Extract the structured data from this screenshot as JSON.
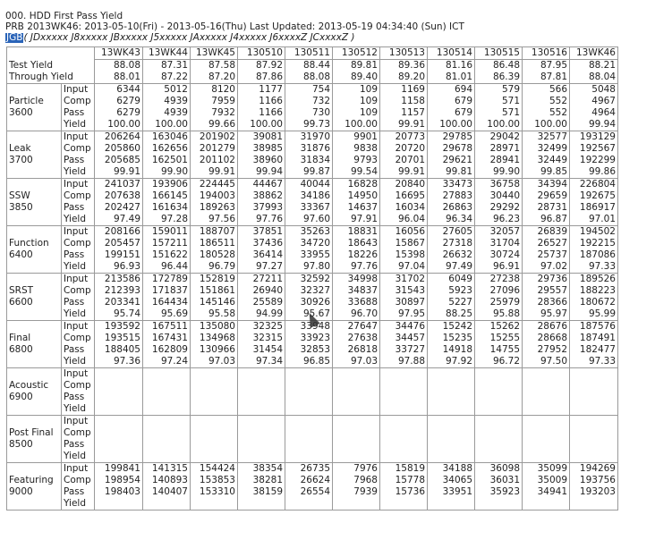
{
  "header": {
    "title": "000. HDD First Pass Yield",
    "line2_prefix": "PRB",
    "line2_range": "2013WK46: 2013-05-10(Fri) - 2013-05-16(Thu)",
    "line2_updated": "Last Updated: 2013-05-19 04:34:40 (Sun) ICT",
    "tag": "JGB",
    "codes": "( JDxxxxx J8xxxxx JBxxxxx J5xxxxx JAxxxxx J4xxxxx J6xxxxZ JCxxxxZ )"
  },
  "columns": [
    "13WK43",
    "13WK44",
    "13WK45",
    "130510",
    "130511",
    "130512",
    "130513",
    "130514",
    "130515",
    "130516",
    "13WK46"
  ],
  "labels": [
    "Input",
    "Comp",
    "Pass",
    "Yield"
  ],
  "tty": {
    "label_line1": "Test Yield",
    "label_line2": "Through Yield",
    "test_yield": [
      "88.08",
      "87.31",
      "87.58",
      "87.92",
      "88.44",
      "89.81",
      "89.36",
      "81.16",
      "86.48",
      "87.95",
      "88.21"
    ],
    "through_yield": [
      "88.01",
      "87.22",
      "87.20",
      "87.86",
      "88.08",
      "89.40",
      "89.20",
      "81.01",
      "86.39",
      "87.81",
      "88.04"
    ]
  },
  "stages": [
    {
      "name": "Particle",
      "code": "3600",
      "input": [
        "6344",
        "5012",
        "8120",
        "1177",
        "754",
        "109",
        "1169",
        "694",
        "579",
        "566",
        "5048"
      ],
      "comp": [
        "6279",
        "4939",
        "7959",
        "1166",
        "732",
        "109",
        "1158",
        "679",
        "571",
        "552",
        "4967"
      ],
      "pass": [
        "6279",
        "4939",
        "7932",
        "1166",
        "730",
        "109",
        "1157",
        "679",
        "571",
        "552",
        "4964"
      ],
      "yield": [
        "100.00",
        "100.00",
        "99.66",
        "100.00",
        "99.73",
        "100.00",
        "99.91",
        "100.00",
        "100.00",
        "100.00",
        "99.94"
      ]
    },
    {
      "name": "Leak",
      "code": "3700",
      "input": [
        "206264",
        "163046",
        "201902",
        "39081",
        "31970",
        "9901",
        "20773",
        "29785",
        "29042",
        "32577",
        "193129"
      ],
      "comp": [
        "205860",
        "162656",
        "201279",
        "38985",
        "31876",
        "9838",
        "20720",
        "29678",
        "28971",
        "32499",
        "192567"
      ],
      "pass": [
        "205685",
        "162501",
        "201102",
        "38960",
        "31834",
        "9793",
        "20701",
        "29621",
        "28941",
        "32449",
        "192299"
      ],
      "yield": [
        "99.91",
        "99.90",
        "99.91",
        "99.94",
        "99.87",
        "99.54",
        "99.91",
        "99.81",
        "99.90",
        "99.85",
        "99.86"
      ]
    },
    {
      "name": "SSW",
      "code": "3850",
      "input": [
        "241037",
        "193906",
        "224445",
        "44467",
        "40044",
        "16828",
        "20840",
        "33473",
        "36758",
        "34394",
        "226804"
      ],
      "comp": [
        "207638",
        "166145",
        "194003",
        "38862",
        "34186",
        "14950",
        "16695",
        "27883",
        "30440",
        "29659",
        "192675"
      ],
      "pass": [
        "202427",
        "161634",
        "189263",
        "37993",
        "33367",
        "14637",
        "16034",
        "26863",
        "29292",
        "28731",
        "186917"
      ],
      "yield": [
        "97.49",
        "97.28",
        "97.56",
        "97.76",
        "97.60",
        "97.91",
        "96.04",
        "96.34",
        "96.23",
        "96.87",
        "97.01"
      ]
    },
    {
      "name": "Function",
      "code": "6400",
      "input": [
        "208166",
        "159011",
        "188707",
        "37851",
        "35263",
        "18831",
        "16056",
        "27605",
        "32057",
        "26839",
        "194502"
      ],
      "comp": [
        "205457",
        "157211",
        "186511",
        "37436",
        "34720",
        "18643",
        "15867",
        "27318",
        "31704",
        "26527",
        "192215"
      ],
      "pass": [
        "199151",
        "151622",
        "180528",
        "36414",
        "33955",
        "18226",
        "15398",
        "26632",
        "30724",
        "25737",
        "187086"
      ],
      "yield": [
        "96.93",
        "96.44",
        "96.79",
        "97.27",
        "97.80",
        "97.76",
        "97.04",
        "97.49",
        "96.91",
        "97.02",
        "97.33"
      ]
    },
    {
      "name": "SRST",
      "code": "6600",
      "input": [
        "213586",
        "172789",
        "152819",
        "27211",
        "32592",
        "34998",
        "31702",
        "6049",
        "27238",
        "29736",
        "189526"
      ],
      "comp": [
        "212393",
        "171837",
        "151861",
        "26940",
        "32327",
        "34837",
        "31543",
        "5923",
        "27096",
        "29557",
        "188223"
      ],
      "pass": [
        "203341",
        "164434",
        "145146",
        "25589",
        "30926",
        "33688",
        "30897",
        "5227",
        "25979",
        "28366",
        "180672"
      ],
      "yield": [
        "95.74",
        "95.69",
        "95.58",
        "94.99",
        "95.67",
        "96.70",
        "97.95",
        "88.25",
        "95.88",
        "95.97",
        "95.99"
      ]
    },
    {
      "name": "Final",
      "code": "6800",
      "input": [
        "193592",
        "167511",
        "135080",
        "32325",
        "33948",
        "27647",
        "34476",
        "15242",
        "15262",
        "28676",
        "187576"
      ],
      "comp": [
        "193515",
        "167431",
        "134968",
        "32315",
        "33923",
        "27638",
        "34457",
        "15235",
        "15255",
        "28668",
        "187491"
      ],
      "pass": [
        "188405",
        "162809",
        "130966",
        "31454",
        "32853",
        "26818",
        "33727",
        "14918",
        "14755",
        "27952",
        "182477"
      ],
      "yield": [
        "97.36",
        "97.24",
        "97.03",
        "97.34",
        "96.85",
        "97.03",
        "97.88",
        "97.92",
        "96.72",
        "97.50",
        "97.33"
      ]
    },
    {
      "name": "Acoustic",
      "code": "6900",
      "input": [
        "",
        "",
        "",
        "",
        "",
        "",
        "",
        "",
        "",
        "",
        ""
      ],
      "comp": [
        "",
        "",
        "",
        "",
        "",
        "",
        "",
        "",
        "",
        "",
        ""
      ],
      "pass": [
        "",
        "",
        "",
        "",
        "",
        "",
        "",
        "",
        "",
        "",
        ""
      ],
      "yield": [
        "",
        "",
        "",
        "",
        "",
        "",
        "",
        "",
        "",
        "",
        ""
      ]
    },
    {
      "name": "Post Final",
      "code": "8500",
      "input": [
        "",
        "",
        "",
        "",
        "",
        "",
        "",
        "",
        "",
        "",
        ""
      ],
      "comp": [
        "",
        "",
        "",
        "",
        "",
        "",
        "",
        "",
        "",
        "",
        ""
      ],
      "pass": [
        "",
        "",
        "",
        "",
        "",
        "",
        "",
        "",
        "",
        "",
        ""
      ],
      "yield": [
        "",
        "",
        "",
        "",
        "",
        "",
        "",
        "",
        "",
        "",
        ""
      ]
    },
    {
      "name": "Featuring",
      "code": "9000",
      "input": [
        "199841",
        "141315",
        "154424",
        "38354",
        "26735",
        "7976",
        "15819",
        "34188",
        "36098",
        "35099",
        "194269"
      ],
      "comp": [
        "198954",
        "140893",
        "153853",
        "38281",
        "26624",
        "7968",
        "15778",
        "34065",
        "36031",
        "35009",
        "193756"
      ],
      "pass": [
        "198403",
        "140407",
        "153310",
        "38159",
        "26554",
        "7939",
        "15736",
        "33951",
        "35923",
        "34941",
        "193203"
      ],
      "yield": [
        "",
        "",
        "",
        "",
        "",
        "",
        "",
        "",
        "",
        "",
        ""
      ]
    }
  ]
}
